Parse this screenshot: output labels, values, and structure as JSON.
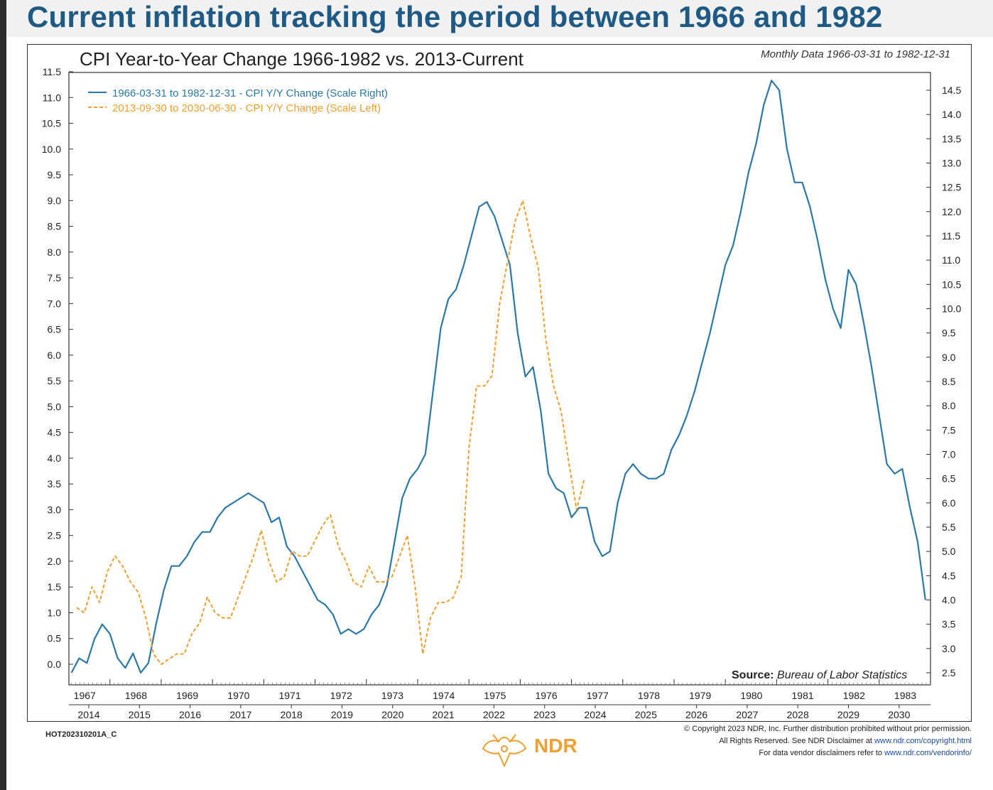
{
  "headline": "Current inflation tracking the period between 1966 and 1982",
  "monthly_note": "Monthly Data 1966-03-31 to 1982-12-31",
  "doc_code": "HOT202310201A_C",
  "logo_text": "NDR",
  "source_label": "Source:",
  "source_value": "Bureau of Labor Statistics",
  "copyright": {
    "line1": "© Copyright 2023 NDR, Inc. Further distribution prohibited without prior permission.",
    "line2": "All Rights Reserved. See NDR Disclaimer at",
    "line2_link": "www.ndr.com/copyright.html",
    "line3": "For data vendor disclaimers refer to",
    "line3_link": "www.ndr.com/vendorinfo/"
  },
  "colors": {
    "blue": "#2d79a5",
    "orange": "#f0a030",
    "headline": "#1f5a84"
  },
  "chart_data": {
    "type": "line",
    "title": "CPI Year-to-Year Change 1966-1982 vs. 2013-Current",
    "x_top_labels": [
      "1967",
      "1968",
      "1969",
      "1970",
      "1971",
      "1972",
      "1973",
      "1974",
      "1975",
      "1976",
      "1977",
      "1978",
      "1979",
      "1980",
      "1981",
      "1982",
      "1983"
    ],
    "x_bottom_labels": [
      "2014",
      "2015",
      "2016",
      "2017",
      "2018",
      "2019",
      "2020",
      "2021",
      "2022",
      "2023",
      "2024",
      "2025",
      "2026",
      "2027",
      "2028",
      "2029",
      "2030"
    ],
    "y_left_ticks": [
      "0.0",
      "0.5",
      "1.0",
      "1.5",
      "2.0",
      "2.5",
      "3.0",
      "3.5",
      "4.0",
      "4.5",
      "5.0",
      "5.5",
      "6.0",
      "6.5",
      "7.0",
      "7.5",
      "8.0",
      "8.5",
      "9.0",
      "9.5",
      "10.0",
      "10.5",
      "11.0",
      "11.5"
    ],
    "y_right_ticks": [
      "2.5",
      "3.0",
      "3.5",
      "4.0",
      "4.5",
      "5.0",
      "5.5",
      "6.0",
      "6.5",
      "7.0",
      "7.5",
      "8.0",
      "8.5",
      "9.0",
      "9.5",
      "10.0",
      "10.5",
      "11.0",
      "11.5",
      "12.0",
      "12.5",
      "13.0",
      "13.5",
      "14.0",
      "14.5"
    ],
    "ylim_left": [
      0.0,
      11.5
    ],
    "ylim_right": [
      2.5,
      14.5
    ],
    "xlim_top": [
      1966.2,
      1983.0
    ],
    "series": [
      {
        "name": "1966-03-31 to 1982-12-31 - CPI Y/Y Change (Scale Right)",
        "axis": "right",
        "style": "solid",
        "x": [
          1966.25,
          1966.4,
          1966.55,
          1966.7,
          1966.85,
          1967.0,
          1967.15,
          1967.3,
          1967.45,
          1967.6,
          1967.75,
          1967.9,
          1968.05,
          1968.2,
          1968.35,
          1968.5,
          1968.65,
          1968.8,
          1968.95,
          1969.1,
          1969.25,
          1969.4,
          1969.55,
          1969.7,
          1969.85,
          1970.0,
          1970.15,
          1970.3,
          1970.45,
          1970.6,
          1970.75,
          1970.9,
          1971.05,
          1971.2,
          1971.35,
          1971.5,
          1971.65,
          1971.8,
          1971.95,
          1972.1,
          1972.25,
          1972.4,
          1972.55,
          1972.7,
          1972.85,
          1973.0,
          1973.15,
          1973.3,
          1973.45,
          1973.6,
          1973.75,
          1973.9,
          1974.05,
          1974.2,
          1974.35,
          1974.5,
          1974.65,
          1974.8,
          1974.95,
          1975.1,
          1975.25,
          1975.4,
          1975.55,
          1975.7,
          1975.85,
          1976.0,
          1976.15,
          1976.3,
          1976.45,
          1976.6,
          1976.75,
          1976.9,
          1977.05,
          1977.2,
          1977.35,
          1977.5,
          1977.65,
          1977.8,
          1977.95,
          1978.1,
          1978.25,
          1978.4,
          1978.55,
          1978.7,
          1978.85,
          1979.0,
          1979.15,
          1979.3,
          1979.45,
          1979.6,
          1979.75,
          1979.9,
          1980.05,
          1980.2,
          1980.35,
          1980.5,
          1980.65,
          1980.8,
          1980.95,
          1981.1,
          1981.25,
          1981.4,
          1981.55,
          1981.7,
          1981.85,
          1982.0,
          1982.15,
          1982.3,
          1982.45,
          1982.6,
          1982.75,
          1982.9
        ],
        "values": [
          2.5,
          2.8,
          2.7,
          3.2,
          3.5,
          3.3,
          2.8,
          2.6,
          2.9,
          2.5,
          2.7,
          3.5,
          4.2,
          4.7,
          4.7,
          4.9,
          5.2,
          5.4,
          5.4,
          5.7,
          5.9,
          6.0,
          6.1,
          6.2,
          6.1,
          6.0,
          5.6,
          5.7,
          5.1,
          4.9,
          4.6,
          4.3,
          4.0,
          3.9,
          3.7,
          3.3,
          3.4,
          3.3,
          3.4,
          3.7,
          3.9,
          4.3,
          5.2,
          6.1,
          6.5,
          6.7,
          7.0,
          8.3,
          9.6,
          10.2,
          10.4,
          10.9,
          11.5,
          12.1,
          12.2,
          11.9,
          11.4,
          10.9,
          9.5,
          8.6,
          8.8,
          7.9,
          6.6,
          6.3,
          6.2,
          5.7,
          5.9,
          5.9,
          5.2,
          4.9,
          5.0,
          6.0,
          6.6,
          6.8,
          6.6,
          6.5,
          6.5,
          6.6,
          7.1,
          7.4,
          7.8,
          8.3,
          8.9,
          9.5,
          10.2,
          10.9,
          11.3,
          12.0,
          12.8,
          13.4,
          14.2,
          14.7,
          14.5,
          13.3,
          12.6,
          12.6,
          12.1,
          11.4,
          10.6,
          10.0,
          9.6,
          10.8,
          10.5,
          9.7,
          8.8,
          7.8,
          6.8,
          6.6,
          6.7,
          5.9,
          5.2,
          4.0
        ]
      },
      {
        "name": "2013-09-30 to 2030-06-30 - CPI Y/Y Change (Scale Left)",
        "axis": "left",
        "style": "dashed",
        "x": [
          1966.35,
          1966.5,
          1966.65,
          1966.8,
          1966.95,
          1967.1,
          1967.25,
          1967.4,
          1967.55,
          1967.7,
          1967.85,
          1968.0,
          1968.15,
          1968.3,
          1968.45,
          1968.6,
          1968.75,
          1968.9,
          1969.05,
          1969.2,
          1969.35,
          1969.5,
          1969.65,
          1969.8,
          1969.95,
          1970.1,
          1970.25,
          1970.4,
          1970.55,
          1970.7,
          1970.85,
          1971.0,
          1971.15,
          1971.3,
          1971.45,
          1971.6,
          1971.75,
          1971.9,
          1972.05,
          1972.2,
          1972.35,
          1972.5,
          1972.65,
          1972.8,
          1972.95,
          1973.1,
          1973.25,
          1973.4,
          1973.55,
          1973.7,
          1973.85,
          1974.0,
          1974.15,
          1974.3,
          1974.45,
          1974.6,
          1974.75,
          1974.9,
          1975.05,
          1975.2,
          1975.35,
          1975.5,
          1975.65,
          1975.8,
          1975.95,
          1976.1,
          1976.25
        ],
        "values": [
          1.1,
          1.0,
          1.5,
          1.2,
          1.8,
          2.1,
          1.9,
          1.6,
          1.4,
          0.9,
          0.2,
          0.0,
          0.1,
          0.2,
          0.2,
          0.6,
          0.8,
          1.3,
          1.0,
          0.9,
          0.9,
          1.3,
          1.7,
          2.1,
          2.6,
          2.0,
          1.6,
          1.7,
          2.2,
          2.1,
          2.1,
          2.4,
          2.7,
          2.9,
          2.3,
          2.0,
          1.6,
          1.5,
          1.9,
          1.6,
          1.6,
          1.7,
          2.1,
          2.5,
          1.5,
          0.2,
          0.9,
          1.2,
          1.2,
          1.3,
          1.7,
          4.2,
          5.4,
          5.4,
          5.6,
          7.0,
          7.8,
          8.6,
          9.0,
          8.3,
          7.7,
          6.3,
          5.4,
          4.9,
          3.9,
          3.0,
          3.6
        ]
      }
    ],
    "grid": false,
    "legend_position": "top-left"
  }
}
